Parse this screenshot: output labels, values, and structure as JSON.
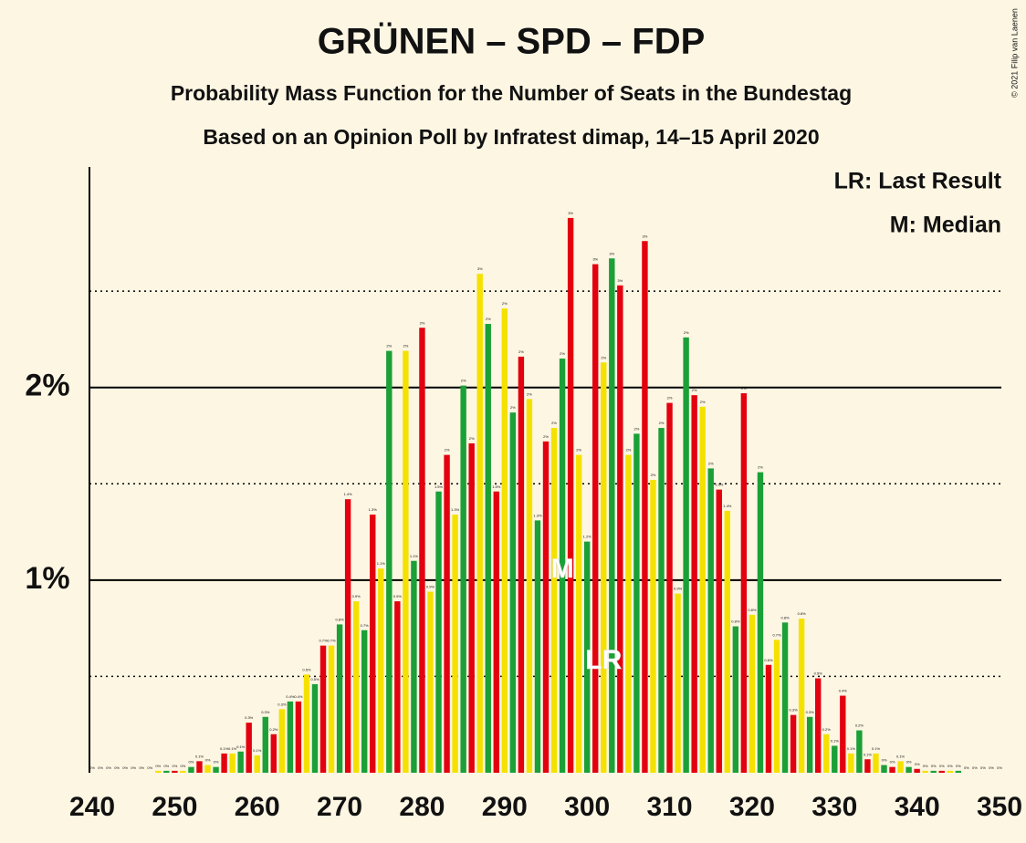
{
  "chart_data": {
    "type": "bar",
    "title": "GRÜNEN – SPD – FDP",
    "subtitle": "Probability Mass Function for the Number of Seats in the Bundestag",
    "subtitle2": "Based on an Opinion Poll by Infratest dimap, 14–15 April 2020",
    "legend_notes": [
      "LR: Last Result",
      "M: Median"
    ],
    "copyright": "© 2021 Filip van Laenen",
    "x": [
      240,
      241,
      242,
      243,
      244,
      245,
      246,
      247,
      248,
      249,
      250,
      251,
      252,
      253,
      254,
      255,
      256,
      257,
      258,
      259,
      260,
      261,
      262,
      263,
      264,
      265,
      266,
      267,
      268,
      269,
      270,
      271,
      272,
      273,
      274,
      275,
      276,
      277,
      278,
      279,
      280,
      281,
      282,
      283,
      284,
      285,
      286,
      287,
      288,
      289,
      290,
      291,
      292,
      293,
      294,
      295,
      296,
      297,
      298,
      299,
      300,
      301,
      302,
      303,
      304,
      305,
      306,
      307,
      308,
      309,
      310,
      311,
      312,
      313,
      314,
      315,
      316,
      317,
      318,
      319,
      320,
      321,
      322,
      323,
      324,
      325,
      326,
      327,
      328,
      329,
      330,
      331,
      332,
      333,
      334,
      335,
      336,
      337,
      338,
      339,
      340,
      341,
      342,
      343,
      344,
      345,
      346,
      347,
      348,
      349,
      350
    ],
    "values": [
      0,
      0,
      0,
      0,
      0,
      0,
      0,
      0,
      0.01,
      0.01,
      0.01,
      0.01,
      0.03,
      0.06,
      0.04,
      0.03,
      0.1,
      0.1,
      0.11,
      0.26,
      0.09,
      0.29,
      0.2,
      0.33,
      0.37,
      0.37,
      0.51,
      0.46,
      0.66,
      0.66,
      0.77,
      1.42,
      0.89,
      0.74,
      1.34,
      1.06,
      2.19,
      0.89,
      2.19,
      1.1,
      2.31,
      0.94,
      1.46,
      1.65,
      1.34,
      2.01,
      1.71,
      2.59,
      2.33,
      1.46,
      2.41,
      1.87,
      2.16,
      1.94,
      1.31,
      1.72,
      1.79,
      2.15,
      2.88,
      1.65,
      1.2,
      2.64,
      2.13,
      2.67,
      2.53,
      1.65,
      1.76,
      2.76,
      1.52,
      1.79,
      1.92,
      0.93,
      2.26,
      1.96,
      1.9,
      1.58,
      1.47,
      1.36,
      0.76,
      1.97,
      0.82,
      1.56,
      0.56,
      0.69,
      0.78,
      0.3,
      0.8,
      0.29,
      0.49,
      0.2,
      0.14,
      0.4,
      0.1,
      0.22,
      0.07,
      0.1,
      0.04,
      0.03,
      0.06,
      0.03,
      0.02,
      0.01,
      0.01,
      0.01,
      0.01,
      0.01,
      0,
      0,
      0,
      0,
      0
    ],
    "value_labels": [
      "0%",
      "0%",
      "0%",
      "0%",
      "0%",
      "0%",
      "0%",
      "0%",
      "0%",
      "0%",
      "0%",
      "0%",
      "0%",
      "0.1%",
      "0%",
      "0%",
      "0.1%",
      "0.1%",
      "0.1%",
      "0.3%",
      "0.1%",
      "0.3%",
      "0.2%",
      "0.3%",
      "0.4%",
      "0.4%",
      "0.5%",
      "0.5%",
      "0.7%",
      "0.7%",
      "0.8%",
      "1.4%",
      "0.9%",
      "0.7%",
      "1.3%",
      "1.1%",
      "2%",
      "0.9%",
      "2%",
      "1.1%",
      "2%",
      "0.9%",
      "1.5%",
      "2%",
      "1.3%",
      "2%",
      "2%",
      "3%",
      "2%",
      "1.5%",
      "2%",
      "2%",
      "2%",
      "2%",
      "1.3%",
      "2%",
      "2%",
      "2%",
      "3%",
      "2%",
      "1.2%",
      "3%",
      "2%",
      "3%",
      "3%",
      "2%",
      "2%",
      "3%",
      "2%",
      "2%",
      "2%",
      "0.9%",
      "2%",
      "2%",
      "2%",
      "2%",
      "1.5%",
      "1.4%",
      "0.8%",
      "2%",
      "0.8%",
      "2%",
      "0.6%",
      "0.7%",
      "0.8%",
      "0.3%",
      "0.8%",
      "0.3%",
      "0.5%",
      "0.2%",
      "0.1%",
      "0.4%",
      "0.1%",
      "0.2%",
      "0.1%",
      "0.1%",
      "0%",
      "0%",
      "0.1%",
      "0%",
      "0%",
      "0%",
      "0%",
      "0%",
      "0%",
      "0%",
      "0%",
      "0%",
      "0%",
      "0%",
      "0%"
    ],
    "colors": [
      "#1AA037",
      "#E3000F",
      "#F5E100"
    ],
    "annotations": [
      {
        "text": "M",
        "x": 297
      },
      {
        "text": "LR",
        "x": 302
      }
    ],
    "xlim": [
      240,
      350
    ],
    "xticks": [
      240,
      250,
      260,
      270,
      280,
      290,
      300,
      310,
      320,
      330,
      340,
      350
    ],
    "ylim": [
      0,
      3.14
    ],
    "yticks": [
      {
        "value": 1,
        "label": "1%"
      },
      {
        "value": 2,
        "label": "2%"
      }
    ],
    "minor_yticks": [
      0.5,
      1.5,
      2.5
    ],
    "grid": true
  }
}
